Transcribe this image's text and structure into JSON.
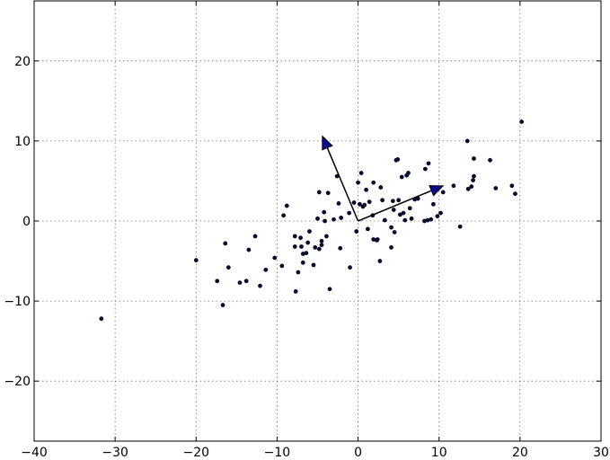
{
  "chart_data": {
    "type": "scatter",
    "title": "",
    "xlabel": "",
    "ylabel": "",
    "xlim": [
      -40,
      30
    ],
    "ylim": [
      -27.5,
      27.5
    ],
    "xticks": [
      -40,
      -30,
      -20,
      -10,
      0,
      10,
      20,
      30
    ],
    "yticks": [
      -20,
      -10,
      0,
      10,
      20
    ],
    "xtick_labels": [
      "−40",
      "−30",
      "−20",
      "−10",
      "0",
      "10",
      "20",
      "30"
    ],
    "ytick_labels": [
      "−20",
      "−10",
      "0",
      "10",
      "20"
    ],
    "grid": true,
    "series": [
      {
        "color": "#0b0b2e",
        "points": [
          [
            -31.7,
            -12.2
          ],
          [
            -20.0,
            -4.9
          ],
          [
            -17.4,
            -7.5
          ],
          [
            -16.7,
            -10.5
          ],
          [
            -16.4,
            -2.8
          ],
          [
            -16.0,
            -5.8
          ],
          [
            -14.6,
            -7.7
          ],
          [
            -13.8,
            -7.5
          ],
          [
            -13.5,
            -3.6
          ],
          [
            -12.7,
            -1.9
          ],
          [
            -12.1,
            -8.1
          ],
          [
            -11.4,
            -6.1
          ],
          [
            -10.3,
            -4.6
          ],
          [
            -9.4,
            -5.6
          ],
          [
            -9.2,
            0.7
          ],
          [
            -8.8,
            1.9
          ],
          [
            -7.8,
            -1.9
          ],
          [
            -7.8,
            -3.2
          ],
          [
            -7.7,
            -8.8
          ],
          [
            -7.4,
            -6.4
          ],
          [
            -7.1,
            -2.1
          ],
          [
            -7.0,
            -3.2
          ],
          [
            -6.8,
            -5.2
          ],
          [
            -6.8,
            -4.1
          ],
          [
            -6.4,
            -4.0
          ],
          [
            -6.2,
            -2.7
          ],
          [
            -6.0,
            -1.3
          ],
          [
            -5.5,
            -5.5
          ],
          [
            -5.3,
            -3.3
          ],
          [
            -5.0,
            0.3
          ],
          [
            -4.8,
            3.6
          ],
          [
            -4.8,
            -3.5
          ],
          [
            -4.5,
            -2.5
          ],
          [
            -4.5,
            -3.0
          ],
          [
            -4.2,
            1.1
          ],
          [
            -4.1,
            0.0
          ],
          [
            -3.9,
            -1.9
          ],
          [
            -3.7,
            3.5
          ],
          [
            -3.5,
            -8.5
          ],
          [
            -3.0,
            0.2
          ],
          [
            -2.6,
            5.6
          ],
          [
            -2.4,
            2.2
          ],
          [
            -2.2,
            -3.4
          ],
          [
            -2.1,
            0.4
          ],
          [
            -1.1,
            1.0
          ],
          [
            -1.0,
            -5.8
          ],
          [
            -0.5,
            2.3
          ],
          [
            -0.2,
            -1.3
          ],
          [
            0.0,
            4.8
          ],
          [
            0.2,
            2.1
          ],
          [
            0.4,
            6.0
          ],
          [
            0.6,
            1.8
          ],
          [
            0.8,
            2.0
          ],
          [
            1.0,
            3.9
          ],
          [
            1.2,
            -1.0
          ],
          [
            1.4,
            2.4
          ],
          [
            1.8,
            0.7
          ],
          [
            1.9,
            4.8
          ],
          [
            1.9,
            -2.3
          ],
          [
            2.3,
            -2.4
          ],
          [
            2.4,
            -2.3
          ],
          [
            2.7,
            -5.0
          ],
          [
            2.8,
            4.2
          ],
          [
            3.0,
            2.6
          ],
          [
            3.3,
            0.1
          ],
          [
            4.1,
            -0.8
          ],
          [
            4.1,
            -3.3
          ],
          [
            4.3,
            2.5
          ],
          [
            4.4,
            1.4
          ],
          [
            4.5,
            -1.4
          ],
          [
            4.7,
            7.6
          ],
          [
            4.9,
            7.7
          ],
          [
            5.0,
            2.6
          ],
          [
            5.2,
            0.8
          ],
          [
            5.4,
            5.5
          ],
          [
            5.6,
            1.0
          ],
          [
            5.8,
            0.1
          ],
          [
            6.0,
            5.7
          ],
          [
            6.2,
            6.0
          ],
          [
            6.4,
            1.6
          ],
          [
            6.6,
            0.3
          ],
          [
            7.0,
            2.7
          ],
          [
            7.4,
            2.8
          ],
          [
            8.2,
            0.0
          ],
          [
            8.3,
            6.5
          ],
          [
            8.6,
            0.1
          ],
          [
            8.7,
            7.2
          ],
          [
            9.0,
            0.2
          ],
          [
            9.3,
            2.1
          ],
          [
            9.8,
            0.6
          ],
          [
            10.2,
            1.0
          ],
          [
            10.5,
            3.6
          ],
          [
            11.8,
            4.4
          ],
          [
            12.6,
            -0.7
          ],
          [
            13.5,
            10.0
          ],
          [
            14.0,
            4.3
          ],
          [
            14.2,
            5.1
          ],
          [
            14.3,
            5.6
          ],
          [
            14.3,
            7.8
          ],
          [
            16.3,
            7.6
          ],
          [
            17.0,
            4.1
          ],
          [
            19.0,
            4.4
          ],
          [
            19.4,
            3.4
          ],
          [
            20.2,
            12.4
          ],
          [
            13.6,
            4.0
          ]
        ]
      }
    ],
    "arrows": [
      {
        "from": [
          0,
          0
        ],
        "to": [
          10.5,
          4.4
        ]
      },
      {
        "from": [
          0,
          0
        ],
        "to": [
          -4.4,
          10.6
        ]
      }
    ]
  }
}
